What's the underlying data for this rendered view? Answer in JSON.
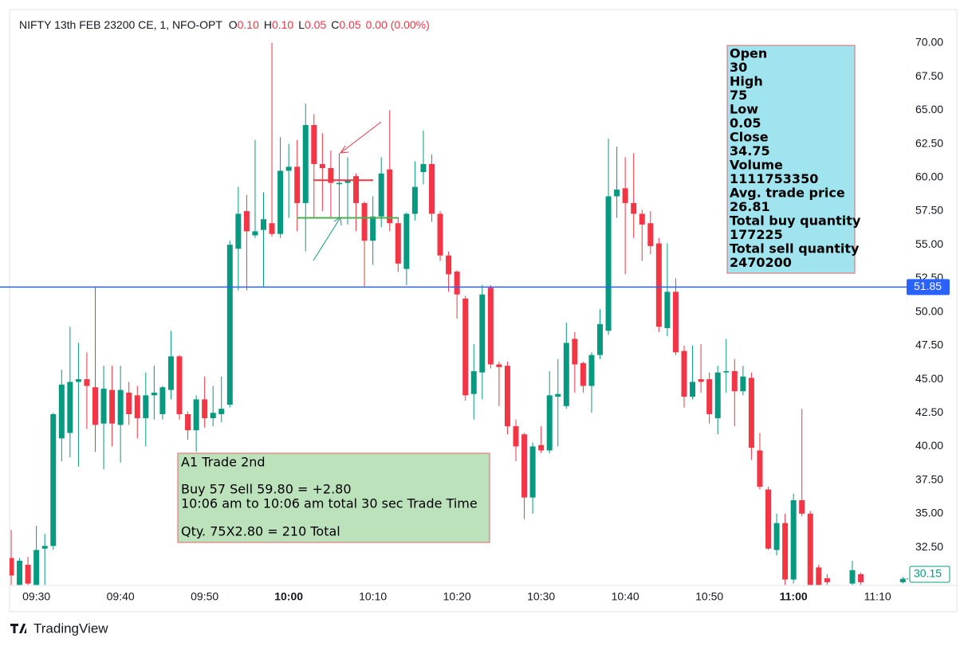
{
  "header": {
    "symbol": "NIFTY 13th FEB 23200 CE, 1, NFO-OPT",
    "ohlc": [
      {
        "key": "O",
        "value": "0.10"
      },
      {
        "key": "H",
        "value": "0.10"
      },
      {
        "key": "L",
        "value": "0.05"
      },
      {
        "key": "C",
        "value": "0.05"
      }
    ],
    "change": "0.00 (0.00%)"
  },
  "chart_data": {
    "type": "candlestick",
    "up_color": "#089981",
    "down_color": "#f23645",
    "categories": [
      null,
      null,
      null,
      "09:30",
      null,
      null,
      null,
      null,
      null,
      null,
      null,
      null,
      null,
      "09:40",
      null,
      null,
      null,
      null,
      null,
      null,
      null,
      null,
      null,
      "09:50",
      null,
      null,
      null,
      null,
      null,
      null,
      null,
      null,
      null,
      "10:00",
      null,
      null,
      null,
      null,
      null,
      null,
      null,
      null,
      null,
      "10:10",
      null,
      null,
      null,
      null,
      null,
      null,
      null,
      null,
      null,
      "10:20",
      null,
      null,
      null,
      null,
      null,
      null,
      null,
      null,
      null,
      "10:30",
      null,
      null,
      null,
      null,
      null,
      null,
      null,
      null,
      null,
      "10:40",
      null,
      null,
      null,
      null,
      null,
      null,
      null,
      null,
      null,
      "10:50",
      null,
      null,
      null,
      null,
      null,
      null,
      null,
      null,
      null,
      "11:00",
      null,
      null,
      null,
      null,
      null,
      null,
      null,
      null,
      null,
      "11:10",
      null,
      null,
      null
    ],
    "open": [
      31.7,
      29.7,
      31.2,
      29.7,
      32.4,
      32.6,
      40.6,
      41.0,
      44.8,
      45.0,
      44.4,
      41.7,
      44.2,
      41.6,
      44.0,
      43.8,
      42.1,
      43.8,
      42.4,
      44.2,
      46.7,
      42.4,
      41.2,
      43.5,
      42.1,
      42.4,
      43.1,
      54.7,
      57.5,
      55.7,
      56.1,
      56.6,
      55.8,
      60.5,
      60.8,
      58.1,
      63.9,
      61.0,
      60.7,
      59.5,
      59.6,
      60.1,
      58.1,
      55.3,
      57.1,
      60.6,
      56.6,
      53.2,
      57.3,
      60.4,
      61.0,
      57.3,
      54.2,
      53.0,
      51.0,
      43.9,
      45.5,
      51.8,
      46.1,
      46.0,
      41.5,
      40.9,
      36.2,
      40.1,
      39.7,
      43.7,
      43.0,
      48.0,
      46.2,
      44.5,
      46.8,
      48.6,
      58.6,
      59.2,
      58.1,
      57.3,
      56.6,
      55.1,
      48.8,
      51.5,
      47.1,
      43.7,
      45.0,
      45.0,
      42.1,
      45.5,
      45.6,
      44.1,
      45.1,
      39.7,
      36.8,
      32.3,
      34.3,
      30.1,
      36.0,
      35.0,
      31.0,
      30.2,
      null,
      null,
      29.8,
      30.5,
      null,
      null,
      null,
      null,
      29.9
    ],
    "high": [
      33.8,
      31.7,
      31.8,
      34.1,
      33.5,
      42.5,
      45.7,
      48.9,
      47.7,
      47.0,
      51.9,
      46.0,
      46.0,
      46.0,
      44.8,
      44.5,
      45.5,
      46.0,
      44.5,
      48.6,
      46.8,
      42.6,
      43.8,
      45.2,
      44.5,
      45.2,
      55.3,
      59.3,
      58.7,
      62.8,
      58.9,
      70.0,
      63.0,
      62.5,
      62.8,
      65.5,
      64.7,
      63.3,
      62.0,
      61.8,
      61.5,
      60.3,
      58.2,
      58.6,
      61.5,
      65.0,
      57.0,
      57.4,
      61.2,
      63.5,
      61.7,
      57.5,
      54.5,
      53.1,
      51.2,
      47.6,
      52.0,
      52.0,
      46.3,
      46.3,
      42.0,
      41.0,
      40.3,
      41.5,
      45.6,
      46.5,
      49.2,
      48.5,
      46.3,
      47.0,
      50.2,
      62.9,
      62.3,
      61.5,
      61.8,
      57.6,
      57.5,
      55.5,
      55.1,
      52.5,
      47.5,
      47.5,
      47.6,
      45.5,
      46.0,
      48.0,
      46.5,
      46.0,
      45.5,
      41.0,
      37.0,
      35.0,
      35.0,
      36.5,
      42.8,
      35.2,
      31.2,
      30.5,
      null,
      null,
      31.5,
      30.6,
      null,
      null,
      null,
      null,
      30.3
    ],
    "low": [
      29.7,
      29.7,
      29.7,
      29.7,
      29.7,
      32.3,
      38.9,
      39.2,
      38.5,
      41.3,
      39.6,
      38.3,
      40.0,
      38.8,
      41.6,
      40.6,
      40.0,
      42.0,
      42.0,
      43.5,
      42.0,
      40.5,
      39.6,
      41.4,
      41.5,
      41.8,
      42.9,
      51.6,
      51.6,
      55.5,
      51.9,
      55.6,
      55.5,
      57.0,
      56.0,
      54.5,
      57.0,
      57.5,
      57.0,
      57.0,
      56.5,
      56.0,
      51.9,
      53.5,
      56.3,
      56.0,
      53.0,
      52.0,
      56.8,
      59.5,
      56.7,
      53.8,
      51.5,
      49.5,
      43.4,
      42.0,
      43.5,
      45.8,
      43.0,
      40.9,
      38.9,
      34.6,
      35.0,
      39.5,
      39.5,
      40.0,
      42.8,
      44.0,
      44.0,
      42.5,
      46.5,
      48.3,
      57.0,
      52.8,
      55.5,
      53.8,
      54.3,
      48.5,
      48.2,
      46.8,
      42.9,
      43.5,
      44.0,
      41.7,
      40.9,
      44.0,
      41.5,
      43.8,
      39.0,
      36.8,
      32.3,
      31.9,
      29.7,
      29.8,
      34.8,
      29.7,
      29.7,
      29.7,
      null,
      null,
      29.7,
      29.7,
      null,
      null,
      null,
      null,
      29.8
    ],
    "close": [
      30.4,
      31.5,
      29.8,
      32.3,
      32.6,
      42.4,
      44.6,
      44.8,
      45.0,
      44.5,
      41.6,
      44.3,
      41.7,
      44.2,
      42.4,
      42.1,
      43.8,
      44.0,
      44.4,
      46.7,
      42.4,
      41.2,
      43.5,
      42.1,
      42.5,
      42.8,
      55.0,
      57.3,
      56.0,
      56.0,
      56.9,
      55.8,
      60.5,
      60.8,
      58.1,
      63.9,
      61.0,
      60.7,
      59.6,
      59.6,
      59.8,
      58.1,
      55.3,
      57.1,
      60.3,
      56.6,
      53.6,
      57.3,
      59.3,
      61.0,
      57.3,
      54.2,
      52.8,
      51.3,
      43.8,
      45.6,
      51.3,
      46.1,
      45.9,
      41.5,
      40.0,
      36.2,
      40.0,
      39.7,
      43.8,
      43.9,
      47.7,
      46.1,
      44.5,
      46.8,
      49.1,
      58.6,
      59.1,
      58.1,
      57.3,
      56.5,
      54.9,
      48.9,
      51.5,
      47.0,
      43.7,
      44.8,
      44.8,
      42.4,
      45.5,
      45.6,
      44.1,
      45.2,
      39.9,
      37.0,
      32.4,
      34.3,
      30.1,
      36.0,
      35.0,
      29.7,
      29.7,
      29.9,
      null,
      null,
      30.8,
      29.9,
      null,
      null,
      null,
      null,
      30.15
    ],
    "ylim": [
      29.66,
      72.49
    ],
    "yticks": [
      {
        "value": 32.5,
        "label": "32.50"
      },
      {
        "value": 35,
        "label": "35.00"
      },
      {
        "value": 37.5,
        "label": "37.50"
      },
      {
        "value": 40,
        "label": "40.00"
      },
      {
        "value": 42.5,
        "label": "42.50"
      },
      {
        "value": 45,
        "label": "45.00"
      },
      {
        "value": 47.5,
        "label": "47.50"
      },
      {
        "value": 50,
        "label": "50.00"
      },
      {
        "value": 52.5,
        "label": "52.50"
      },
      {
        "value": 55,
        "label": "55.00"
      },
      {
        "value": 57.5,
        "label": "57.50"
      },
      {
        "value": 60,
        "label": "60.00"
      },
      {
        "value": 62.5,
        "label": "62.50"
      },
      {
        "value": 65,
        "label": "65.00"
      },
      {
        "value": 67.5,
        "label": "67.50"
      },
      {
        "value": 70,
        "label": "70.00"
      }
    ],
    "grid": false,
    "price_line": {
      "value": 51.85,
      "color": "#2962ff"
    },
    "last_price": {
      "value": 30.15,
      "color": "#089981"
    },
    "trade_lines": [
      {
        "value": 59.8,
        "color": "#f23645"
      },
      {
        "value": 57,
        "color": "#4caf50"
      }
    ]
  },
  "info_box": {
    "lines": [
      "Open",
      "30",
      "High",
      "75",
      "Low",
      "0.05",
      "Close",
      "34.75",
      "Volume",
      "1111753350",
      "Avg. trade price",
      "26.81",
      "Total buy quantity",
      "177225",
      "Total sell quantity",
      "2470200"
    ]
  },
  "note_box": {
    "lines": [
      "A1 Trade 2nd",
      "Buy 57 Sell 59.80  = +2.80",
      "10:06 am to 10:06 am total  30 sec Trade Time",
      "Qty. 75X2.80 = 210 Total"
    ]
  },
  "footer": {
    "brand": "TradingView"
  }
}
